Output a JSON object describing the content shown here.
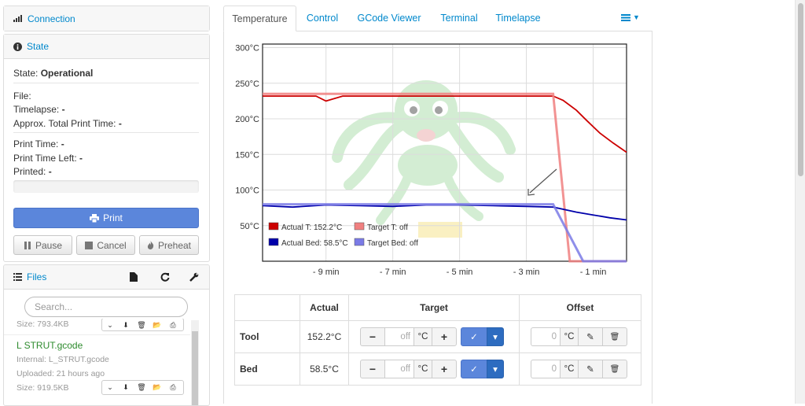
{
  "sidebar": {
    "connection": {
      "title": "Connection"
    },
    "state": {
      "title": "State",
      "state_label": "State:",
      "state_value": "Operational",
      "file_label": "File:",
      "timelapse_label": "Timelapse:",
      "timelapse_value": "-",
      "approx_label": "Approx. Total Print Time:",
      "approx_value": "-",
      "print_time_label": "Print Time:",
      "print_time_value": "-",
      "print_left_label": "Print Time Left:",
      "print_left_value": "-",
      "printed_label": "Printed:",
      "printed_value": "-",
      "progress": 0,
      "print_label": "Print",
      "pause_label": "Pause",
      "cancel_label": "Cancel",
      "preheat_label": "Preheat"
    },
    "files": {
      "title": "Files",
      "search_placeholder": "Search...",
      "items": [
        {
          "size": "Size: 793.4KB"
        },
        {
          "name": "L STRUT.gcode",
          "internal": "Internal: L_STRUT.gcode",
          "uploaded": "Uploaded: 21 hours ago",
          "size": "Size: 919.5KB"
        }
      ]
    }
  },
  "tabs": [
    {
      "label": "Temperature",
      "active": true
    },
    {
      "label": "Control"
    },
    {
      "label": "GCode Viewer"
    },
    {
      "label": "Terminal"
    },
    {
      "label": "Timelapse"
    }
  ],
  "chart_data": {
    "type": "line",
    "x_tick_labels": [
      "- 9 min",
      "- 7 min",
      "- 5 min",
      "- 3 min",
      "- 1 min"
    ],
    "y_tick_labels": [
      "300°C",
      "250°C",
      "200°C",
      "150°C",
      "100°C",
      "50°C"
    ],
    "x_unit": "minutes before now",
    "xlim": [
      -10.9,
      0
    ],
    "ylim": [
      0,
      305
    ],
    "grid": true,
    "legend_position": "bottom-left",
    "series": [
      {
        "name": "Actual T: 152.2°C",
        "color": "#cc0000",
        "x": [
          -10.9,
          -10,
          -9.3,
          -9,
          -8.5,
          -7,
          -6,
          -5,
          -4,
          -3,
          -2.2,
          -1.9,
          -1.5,
          -1.2,
          -0.8,
          -0.4,
          0
        ],
        "y": [
          232,
          232,
          232,
          225,
          232,
          232,
          232,
          232,
          232,
          232,
          232,
          226,
          212,
          198,
          180,
          166,
          153
        ]
      },
      {
        "name": "Target T: off",
        "color": "#f08080",
        "x": [
          -10.9,
          -2.2,
          -1.7,
          0
        ],
        "y": [
          235,
          235,
          0,
          0
        ]
      },
      {
        "name": "Actual Bed: 58.5°C",
        "color": "#0000aa",
        "x": [
          -10.9,
          -10,
          -9,
          -8,
          -7,
          -6,
          -5,
          -4,
          -3,
          -2.2,
          -1.5,
          -1,
          -0.5,
          0
        ],
        "y": [
          78,
          76,
          79,
          78,
          77,
          79,
          79,
          78,
          77,
          76,
          69,
          65,
          61,
          58
        ]
      },
      {
        "name": "Target Bed: off",
        "color": "#7b7be6",
        "x": [
          -10.9,
          -2.2,
          -1.3,
          0
        ],
        "y": [
          80,
          80,
          0,
          0
        ]
      }
    ]
  },
  "temps_table": {
    "headers": [
      "",
      "Actual",
      "Target",
      "Offset"
    ],
    "rows": [
      {
        "name": "Tool",
        "actual": "152.2°C",
        "target": "off",
        "offset": "0",
        "unit": "°C"
      },
      {
        "name": "Bed",
        "actual": "58.5°C",
        "target": "off",
        "offset": "0",
        "unit": "°C"
      }
    ]
  },
  "glyphs": {
    "minus": "−",
    "plus": "+",
    "check": "✓",
    "caret": "▾",
    "pencil": "✎",
    "trash": "🗑"
  }
}
